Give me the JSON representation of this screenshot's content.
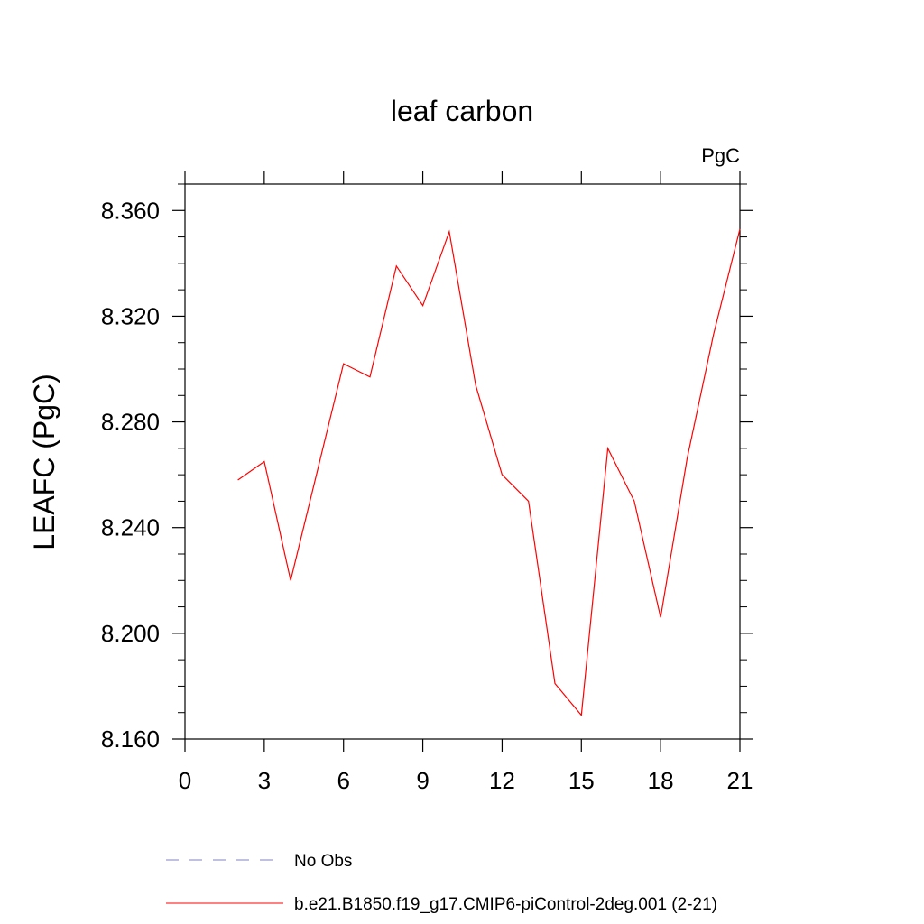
{
  "chart_data": {
    "type": "line",
    "title": "leaf carbon",
    "units_label": "PgC",
    "ylabel": "LEAFC  (PgC)",
    "xlabel": "",
    "xlim": [
      0,
      21
    ],
    "ylim": [
      8.16,
      8.37
    ],
    "x_ticks": [
      0,
      3,
      6,
      9,
      12,
      15,
      18,
      21
    ],
    "x_tick_labels": [
      "0",
      "3",
      "6",
      "9",
      "12",
      "15",
      "18",
      "21"
    ],
    "y_ticks": [
      8.16,
      8.2,
      8.24,
      8.28,
      8.32,
      8.36
    ],
    "y_tick_labels": [
      "8.160",
      "8.200",
      "8.240",
      "8.280",
      "8.320",
      "8.360"
    ],
    "grid": false,
    "legend_placement": "bottom",
    "legend": [
      {
        "label": "No Obs",
        "color": "#8080c0",
        "style": "dashed"
      },
      {
        "label": "b.e21.B1850.f19_g17.CMIP6-piControl-2deg.001 (2-21)",
        "color": "#ff0000",
        "style": "solid"
      }
    ],
    "series": [
      {
        "name": "b.e21.B1850.f19_g17.CMIP6-piControl-2deg.001 (2-21)",
        "color": "#ff0000",
        "x": [
          2,
          3,
          4,
          5,
          6,
          7,
          8,
          9,
          10,
          11,
          12,
          13,
          14,
          15,
          16,
          17,
          18,
          19,
          20,
          21
        ],
        "y": [
          8.258,
          8.265,
          8.22,
          8.261,
          8.302,
          8.297,
          8.339,
          8.324,
          8.352,
          8.294,
          8.26,
          8.25,
          8.181,
          8.169,
          8.27,
          8.25,
          8.206,
          8.266,
          8.313,
          8.353
        ]
      }
    ]
  }
}
